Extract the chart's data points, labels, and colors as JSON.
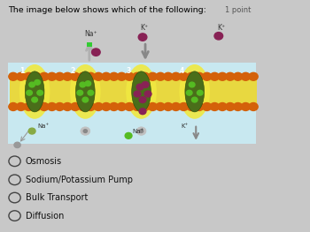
{
  "title": "The image below shows which of the following:",
  "point_label": "1 point",
  "options": [
    "Osmosis",
    "Sodium/Potassium Pump",
    "Bulk Transport",
    "Diffusion"
  ],
  "bg_color": "#c8c8c8",
  "panel_color": "#ececec",
  "title_fontsize": 6.8,
  "option_fontsize": 7.0,
  "mem_orange": "#d4610a",
  "mem_yellow": "#e8d840",
  "protein_dark": "#4a6e1a",
  "protein_mid": "#6a9a2a",
  "na_green": "#55bb22",
  "k_purple": "#882255",
  "arrow_gray": "#b0b0b0",
  "arrow_dark": "#888888",
  "cytoplasm_color": "#c8e8f0"
}
